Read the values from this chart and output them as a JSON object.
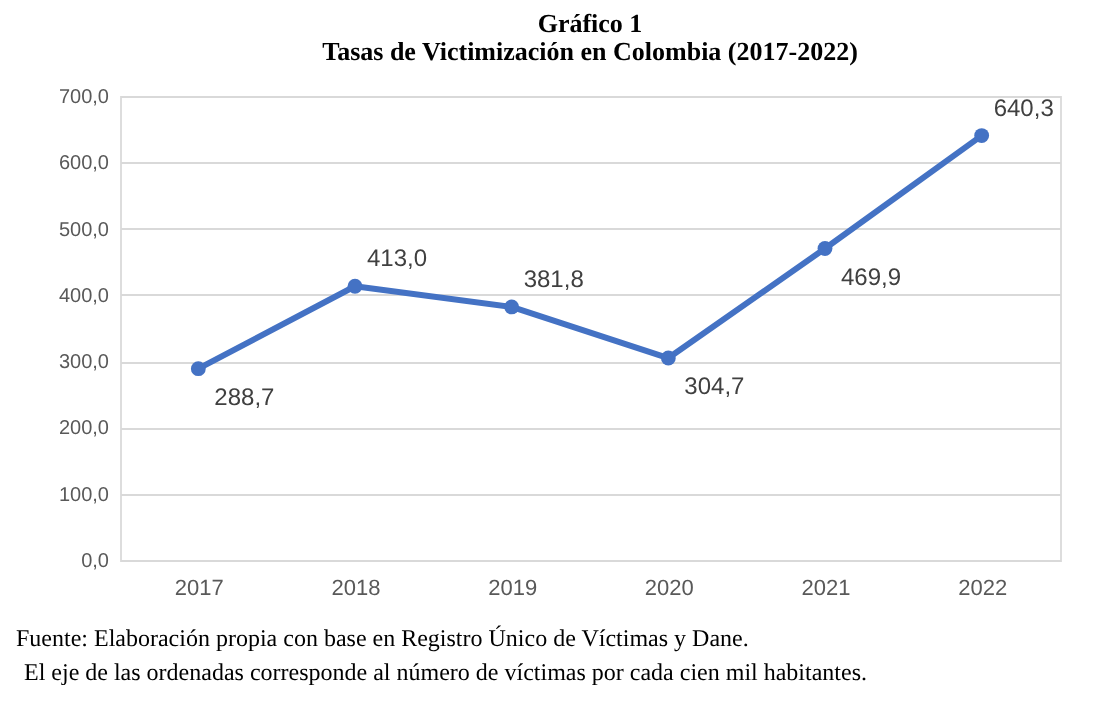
{
  "chart_data": {
    "type": "line",
    "title": "Gráfico 1",
    "subtitle": "Tasas de Victimización en Colombia (2017-2022)",
    "categories": [
      "2017",
      "2018",
      "2019",
      "2020",
      "2021",
      "2022"
    ],
    "series": [
      {
        "color": "#4472c4",
        "values": [
          288.7,
          413.0,
          381.8,
          304.7,
          469.9,
          640.3
        ],
        "value_labels": [
          "288,7",
          "413,0",
          "381,8",
          "304,7",
          "469,9",
          "640,3"
        ]
      }
    ],
    "ylim": [
      0,
      700
    ],
    "yticks": [
      {
        "value": 0,
        "label": "0,0"
      },
      {
        "value": 100,
        "label": "100,0"
      },
      {
        "value": 200,
        "label": "200,0"
      },
      {
        "value": 300,
        "label": "300,0"
      },
      {
        "value": 400,
        "label": "400,0"
      },
      {
        "value": 500,
        "label": "500,0"
      },
      {
        "value": 600,
        "label": "600,0"
      },
      {
        "value": 700,
        "label": "700,0"
      }
    ],
    "grid": "y",
    "marker": "circle",
    "line_style": "solid",
    "annotations": [
      "Fuente: Elaboración propia con base en Registro Único de Víctimas y Dane.",
      "El eje de las ordenadas corresponde al número de víctimas por cada cien mil habitantes."
    ]
  }
}
